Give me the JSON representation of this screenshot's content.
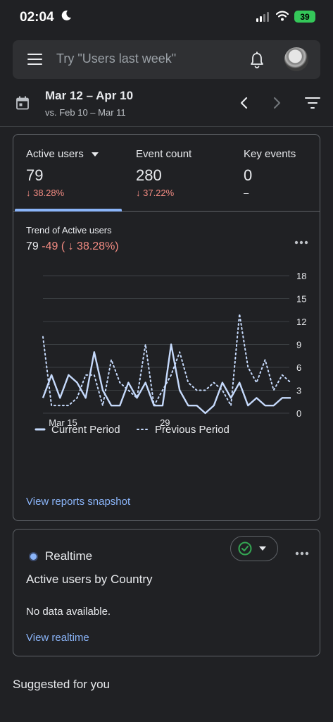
{
  "status_bar": {
    "time": "02:04",
    "battery": "39"
  },
  "search": {
    "placeholder": "Try \"Users last week\""
  },
  "date": {
    "range": "Mar 12 – Apr 10",
    "compare": "vs. Feb 10 – Mar 11"
  },
  "metrics": [
    {
      "label": "Active users",
      "value": "79",
      "change": "↓ 38.28%",
      "has_dropdown": true,
      "selected": true
    },
    {
      "label": "Event count",
      "value": "280",
      "change": "↓ 37.22%"
    },
    {
      "label": "Key events",
      "value": "0",
      "change": "–"
    }
  ],
  "trend": {
    "title": "Trend of Active users",
    "value": "79",
    "delta": "-49 ( ↓ 38.28%)"
  },
  "chart_data": {
    "type": "line",
    "y_ticks": [
      0,
      3,
      6,
      9,
      12,
      15,
      18
    ],
    "ylim": [
      0,
      18
    ],
    "x_ticks": [
      "Mar 15",
      "29"
    ],
    "series": [
      {
        "name": "Current Period",
        "style": "solid",
        "color": "#c6dafc",
        "values": [
          2,
          5,
          2,
          5,
          4,
          2,
          8,
          3,
          1,
          1,
          4,
          2,
          4,
          1,
          1,
          9,
          3,
          1,
          1,
          0,
          1,
          4,
          2,
          4,
          1,
          2,
          1,
          1,
          2,
          2
        ]
      },
      {
        "name": "Previous Period",
        "style": "dotted",
        "color": "#c6dafc",
        "values": [
          10,
          1,
          1,
          1,
          2,
          5,
          5,
          1,
          7,
          4,
          3,
          2,
          9,
          1,
          3,
          5,
          8,
          4,
          3,
          3,
          4,
          3,
          1,
          13,
          6,
          4,
          7,
          3,
          5,
          4
        ]
      }
    ]
  },
  "legend": {
    "current": "Current Period",
    "previous": "Previous Period"
  },
  "links": {
    "snapshot": "View reports snapshot",
    "realtime": "View realtime"
  },
  "realtime": {
    "title": "Realtime",
    "heading": "Active users by Country",
    "empty": "No data available."
  },
  "suggested": "Suggested for you"
}
